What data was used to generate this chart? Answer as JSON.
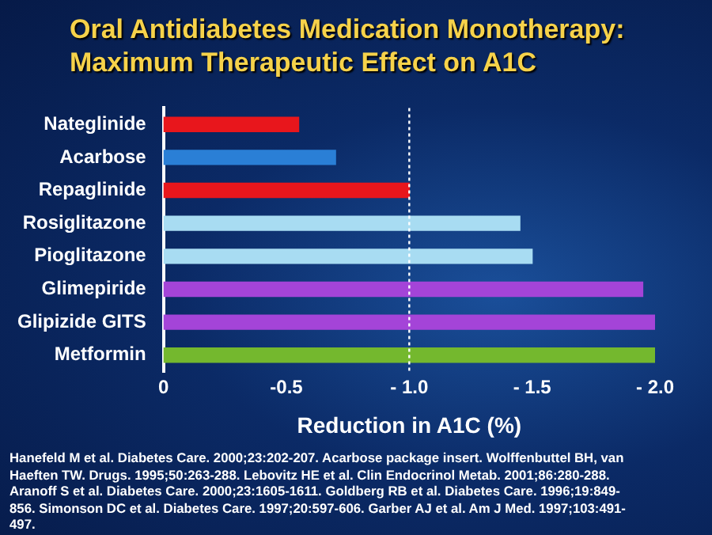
{
  "chart_data": {
    "type": "bar",
    "orientation": "horizontal",
    "title": "Oral Antidiabetes Medication Monotherapy:\nMaximum Therapeutic Effect on A1C",
    "xlabel": "Reduction in A1C (%)",
    "categories": [
      "Nateglinide",
      "Acarbose",
      "Repaglinide",
      "Rosiglitazone",
      "Pioglitazone",
      "Glimepiride",
      "Glipizide GITS",
      "Metformin"
    ],
    "values": [
      -0.55,
      -0.7,
      -1.0,
      -1.45,
      -1.5,
      -1.95,
      -2.0,
      -2.0
    ],
    "colors": [
      "#e8161c",
      "#2a7fd6",
      "#e8161c",
      "#a8dcf2",
      "#a8dcf2",
      "#a444d8",
      "#a444d8",
      "#74b82e"
    ],
    "xlim": [
      0,
      -2.0
    ],
    "xticks": [
      0,
      -0.5,
      {
        "value": -1.0,
        "label": "- 1.0"
      },
      {
        "value": -1.5,
        "label": "- 1.5"
      },
      {
        "value": -2.0,
        "label": "- 2.0"
      }
    ],
    "ref_lines": [
      {
        "axis": "x",
        "value": -1.0,
        "color": "#ffffff",
        "line_style": "dotted"
      }
    ],
    "annotations": [
      "Hanefeld M et al. Diabetes Care. 2000;23:202-207. Acarbose package insert. Wolffenbuttel BH, van Haeften TW. Drugs. 1995;50:263-288. Lebovitz HE et al. Clin Endocrinol Metab. 2001;86:280-288. Aranoff S et al. Diabetes Care. 2000;23:1605-1611. Goldberg RB et al. Diabetes Care. 1996;19:849-856. Simonson DC et al. Diabetes Care. 1997;20:597-606. Garber AJ et al. Am J Med. 1997;103:491-497."
    ]
  }
}
